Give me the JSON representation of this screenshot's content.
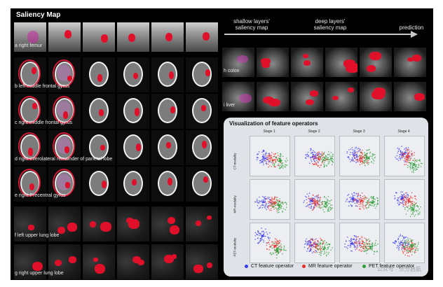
{
  "title": "Saliency Map",
  "header": {
    "shallow": "shallow layers'\nsaliency map",
    "deep": "deep layers'\nsaliency map",
    "prediction": "prediction"
  },
  "rows_left": [
    {
      "label": "a right femur",
      "kind": "femur"
    },
    {
      "label": "b left middle frontal gyrus",
      "kind": "brain"
    },
    {
      "label": "c right middle frontal gyrus",
      "kind": "brain"
    },
    {
      "label": "d right inferolateral remainder of parietal lobe",
      "kind": "brain"
    },
    {
      "label": "e right Precentral gyrus",
      "kind": "brain"
    },
    {
      "label": "f left upper lung lobe",
      "kind": "lung"
    },
    {
      "label": "g right upper lung lobe",
      "kind": "lung"
    }
  ],
  "rows_right": [
    {
      "label": "h colon"
    },
    {
      "label": "i liver"
    }
  ],
  "vis": {
    "title": "Visualization of feature operators",
    "stages": [
      "Stage 1",
      "Stage 2",
      "Stage 3",
      "Stage 4"
    ],
    "row_labels": [
      "CT-modality",
      "MR-modality",
      "PET-modality"
    ],
    "legend": [
      {
        "label": "CT feature operator",
        "color": "#3b3bf0"
      },
      {
        "label": "MR feature operator",
        "color": "#e8302a"
      },
      {
        "label": "PET feature operator",
        "color": "#2e9e3a"
      }
    ],
    "watermark": "公众号 · 乐分启航"
  },
  "colors": {
    "saliency": "#e0102a",
    "background": "#000000",
    "panel": "#dfe3e8"
  }
}
